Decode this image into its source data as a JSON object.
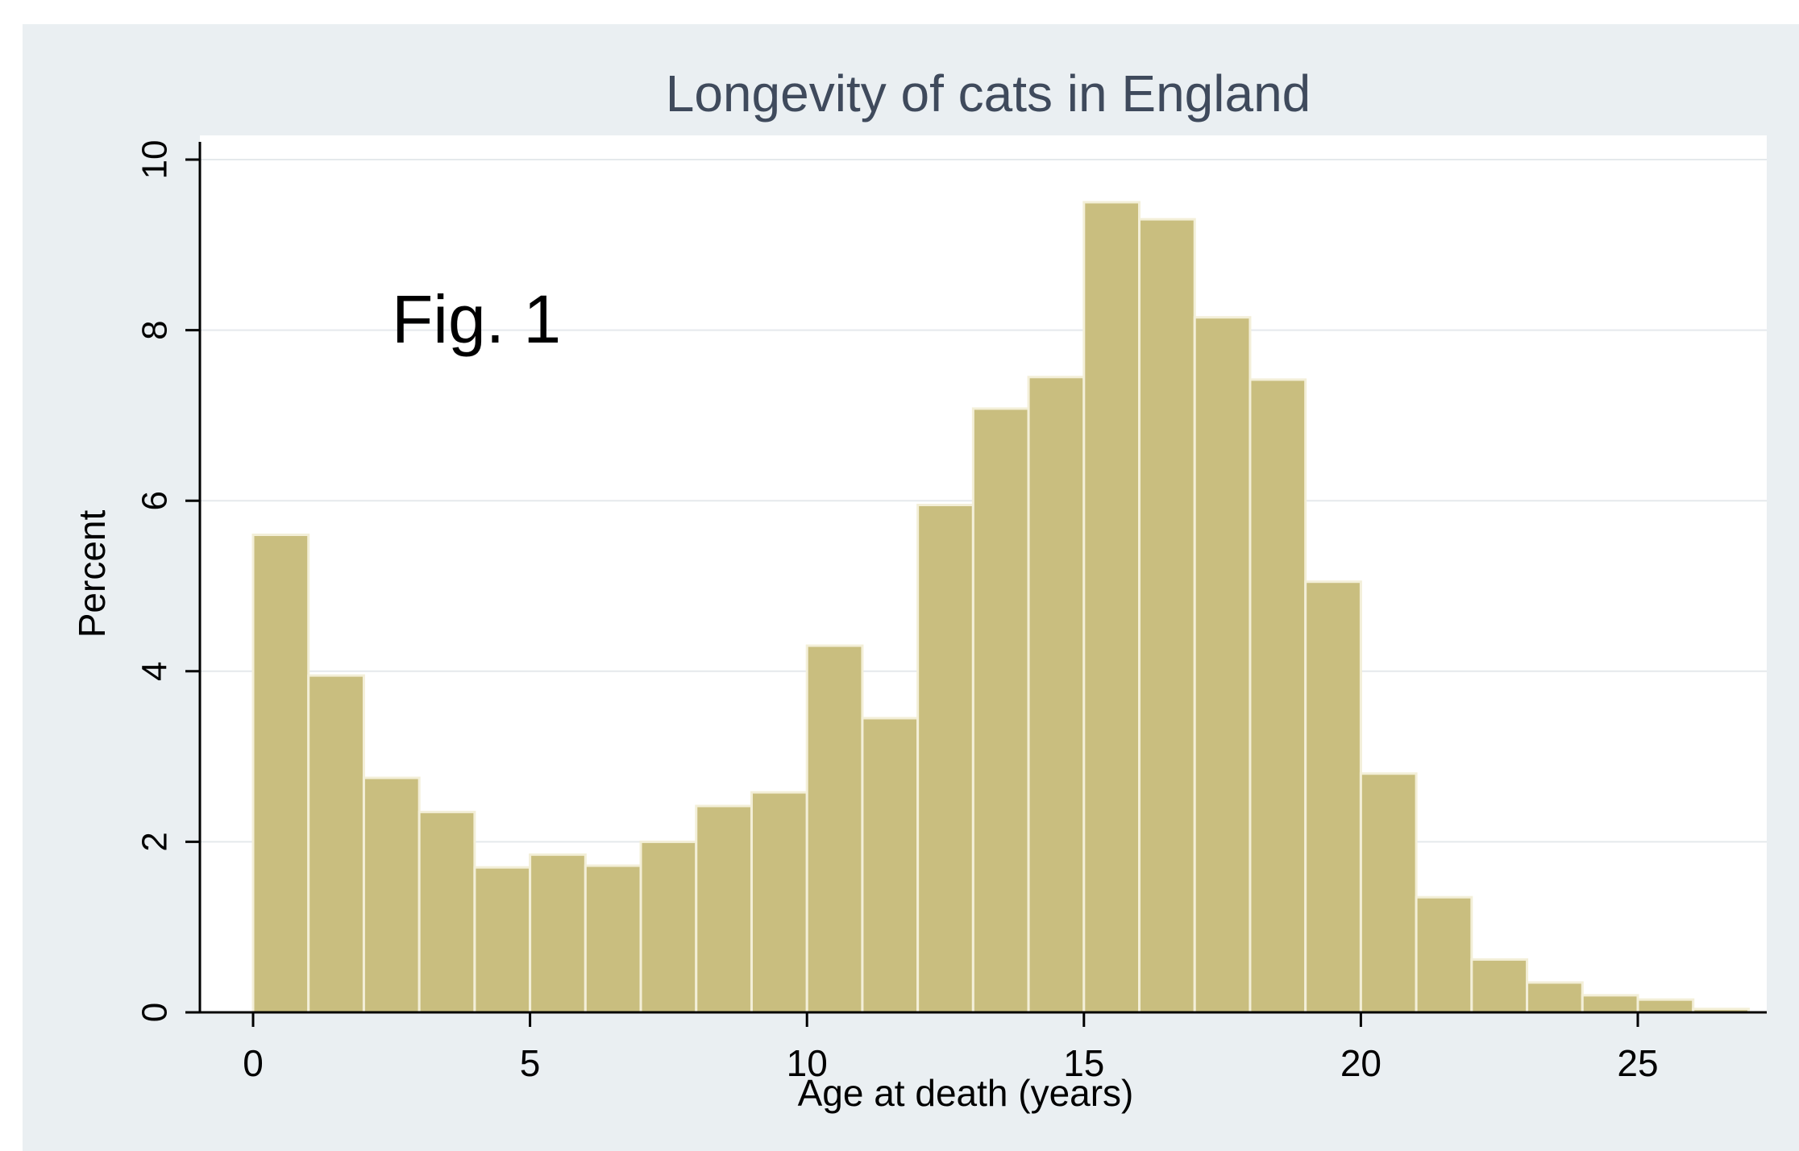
{
  "figure_label": "Fig. 1",
  "chart_data": {
    "type": "bar",
    "title": "Longevity of cats in England",
    "xlabel": "Age at death (years)",
    "ylabel": "Percent",
    "bin_width": 1,
    "x": [
      0,
      1,
      2,
      3,
      4,
      5,
      6,
      7,
      8,
      9,
      10,
      11,
      12,
      13,
      14,
      15,
      16,
      17,
      18,
      19,
      20,
      21,
      22,
      23,
      24,
      25,
      26
    ],
    "values": [
      5.6,
      3.95,
      2.75,
      2.35,
      1.7,
      1.85,
      1.72,
      2.0,
      2.42,
      2.58,
      4.3,
      3.45,
      5.95,
      7.08,
      7.45,
      9.5,
      9.3,
      8.15,
      7.42,
      5.05,
      2.8,
      1.35,
      0.62,
      0.35,
      0.2,
      0.15,
      0.04
    ],
    "xlim": [
      -1,
      27
    ],
    "ylim": [
      0,
      10
    ],
    "xticks": [
      0,
      5,
      10,
      15,
      20,
      25
    ],
    "yticks": [
      0,
      2,
      4,
      6,
      8,
      10
    ],
    "grid": true,
    "colors": {
      "bar": "#c9be7f",
      "bar_edge": "#f3efd8",
      "plot_bg": "#ffffff",
      "outer_bg": "#eaeff2",
      "grid": "#e5e9ec",
      "axis": "#000000",
      "title": "#3f4a5c"
    }
  }
}
